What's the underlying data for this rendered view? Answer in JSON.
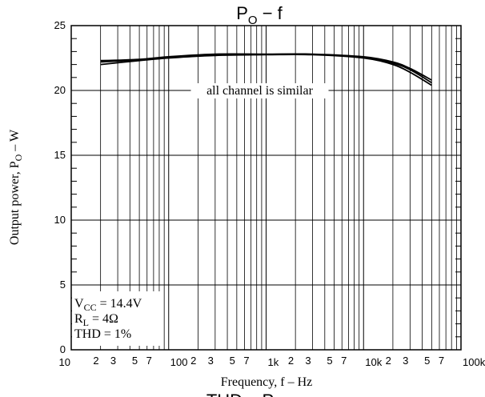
{
  "chart_data": {
    "type": "line",
    "title": {
      "main": "P",
      "sub": "O",
      "rest": " − f"
    },
    "footer_title": {
      "main": "THD",
      "rest": " – P"
    },
    "xlabel": "Frequency, f  –  Hz",
    "ylabel": {
      "pre": "Output power, P",
      "sub": "O",
      "post": "  –  W"
    },
    "x_scale": "log",
    "xlim": [
      10,
      100000
    ],
    "ylim": [
      0,
      25
    ],
    "y_ticks": [
      "0",
      "5",
      "10",
      "15",
      "20",
      "25"
    ],
    "x_major_ticks": [
      {
        "value": 10,
        "label": "10"
      },
      {
        "value": 100,
        "label": "100"
      },
      {
        "value": 1000,
        "label": "1k"
      },
      {
        "value": 10000,
        "label": "10k"
      },
      {
        "value": 100000,
        "label": "100k"
      }
    ],
    "x_minor_tick_labels": [
      {
        "value": 20,
        "label": "2"
      },
      {
        "value": 30,
        "label": "3"
      },
      {
        "value": 50,
        "label": "5"
      },
      {
        "value": 70,
        "label": "7"
      },
      {
        "value": 200,
        "label": "2"
      },
      {
        "value": 300,
        "label": "3"
      },
      {
        "value": 500,
        "label": "5"
      },
      {
        "value": 700,
        "label": "7"
      },
      {
        "value": 2000,
        "label": "2"
      },
      {
        "value": 3000,
        "label": "3"
      },
      {
        "value": 5000,
        "label": "5"
      },
      {
        "value": 7000,
        "label": "7"
      },
      {
        "value": 20000,
        "label": "2"
      },
      {
        "value": 30000,
        "label": "3"
      },
      {
        "value": 50000,
        "label": "5"
      },
      {
        "value": 70000,
        "label": "7"
      }
    ],
    "grid": true,
    "series": [
      {
        "x": [
          20,
          50,
          100,
          300,
          1000,
          3000,
          10000,
          20000,
          30000,
          50000
        ],
        "y": [
          22.3,
          22.4,
          22.6,
          22.8,
          22.8,
          22.8,
          22.6,
          22.2,
          21.7,
          20.8
        ]
      },
      {
        "x": [
          20,
          50,
          100,
          300,
          1000,
          3000,
          10000,
          20000,
          30000,
          50000
        ],
        "y": [
          22.2,
          22.35,
          22.55,
          22.75,
          22.78,
          22.78,
          22.55,
          22.1,
          21.6,
          20.6
        ]
      },
      {
        "x": [
          20,
          50,
          100,
          300,
          1000,
          3000,
          10000,
          20000,
          30000,
          50000
        ],
        "y": [
          22.0,
          22.3,
          22.5,
          22.7,
          22.75,
          22.75,
          22.5,
          22.0,
          21.4,
          20.4
        ]
      }
    ],
    "annotations": {
      "curve_note": "all channel is similar",
      "conditions": [
        {
          "pre": "V",
          "sub": "CC",
          "post": " = 14.4V"
        },
        {
          "pre": "R",
          "sub": "L",
          "post": " = 4Ω"
        },
        {
          "pre": "THD = 1%",
          "sub": "",
          "post": ""
        }
      ]
    }
  }
}
